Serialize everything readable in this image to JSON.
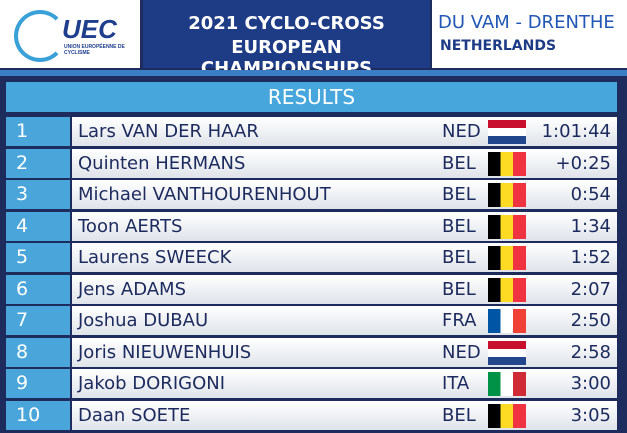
{
  "header": {
    "logo": "UEC",
    "logo_subtitle": "UNION EUROPÉENNE DE CYCLISME",
    "title_line1": "2021 CYCLO-CROSS",
    "title_line2": "EUROPEAN CHAMPIONSHIPS",
    "location": "DU VAM - DRENTHE",
    "country": "NETHERLANDS"
  },
  "table": {
    "title": "RESULTS",
    "rows": [
      [
        "1",
        "Lars VAN DER HAAR",
        "NED",
        "1:01:44"
      ],
      [
        "2",
        "Quinten HERMANS",
        "BEL",
        "+0:25"
      ],
      [
        "3",
        "Michael VANTHOURENHOUT",
        "BEL",
        "0:54"
      ],
      [
        "4",
        "Toon AERTS",
        "BEL",
        "1:34"
      ],
      [
        "5",
        "Laurens SWEECK",
        "BEL",
        "1:52"
      ],
      [
        "6",
        "Jens ADAMS",
        "BEL",
        "2:07"
      ],
      [
        "7",
        "Joshua DUBAU",
        "FRA",
        "2:50"
      ],
      [
        "8",
        "Joris NIEUWENHUIS",
        "NED",
        "2:58"
      ],
      [
        "9",
        "Jakob DORIGONI",
        "ITA",
        "3:00"
      ],
      [
        "10",
        "Daan SOETE",
        "BEL",
        "3:05"
      ]
    ]
  }
}
